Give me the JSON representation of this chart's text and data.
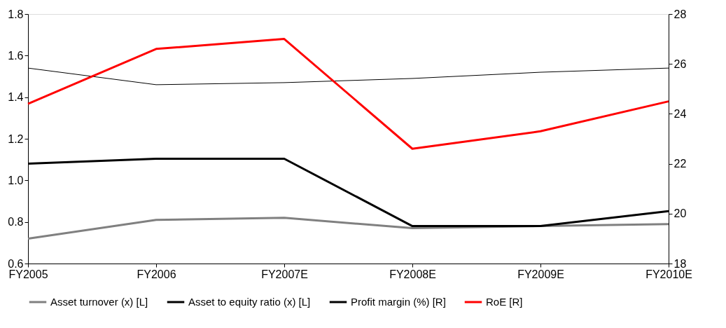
{
  "chart_data": {
    "type": "line",
    "categories": [
      "FY2005",
      "FY2006",
      "FY2007E",
      "FY2008E",
      "FY2009E",
      "FY2010E"
    ],
    "series": [
      {
        "name": "Asset turnover (x) [L]",
        "color": "#808080",
        "values": [
          0.72,
          0.81,
          0.82,
          0.77,
          0.78,
          0.79
        ]
      },
      {
        "name": "Asset to equity ratio (x) [L]",
        "color": "#000000",
        "values": [
          1.54,
          1.46,
          1.47,
          1.49,
          1.52,
          1.54
        ]
      },
      {
        "name": "Profit margin (%) [R]",
        "color": "#000000",
        "axis": "y2",
        "values": [
          22.0,
          22.2,
          22.2,
          19.5,
          19.5,
          20.1
        ]
      },
      {
        "name": "RoE [R]",
        "color": "#ff0000",
        "axis": "y2",
        "values": [
          24.4,
          26.6,
          27.0,
          22.6,
          23.3,
          24.5
        ]
      }
    ],
    "ylim": [
      0.6,
      1.8
    ],
    "yticks": [
      0.6,
      0.8,
      {
        "value": 1.0,
        "label": "1.0"
      },
      1.2,
      1.4,
      1.6,
      1.8
    ],
    "y2lim": [
      18,
      28
    ],
    "y2ticks": [
      18,
      20,
      22,
      24,
      26,
      28
    ],
    "legend": "bottom",
    "grid": false,
    "marker": "none",
    "line_style": "solid"
  }
}
